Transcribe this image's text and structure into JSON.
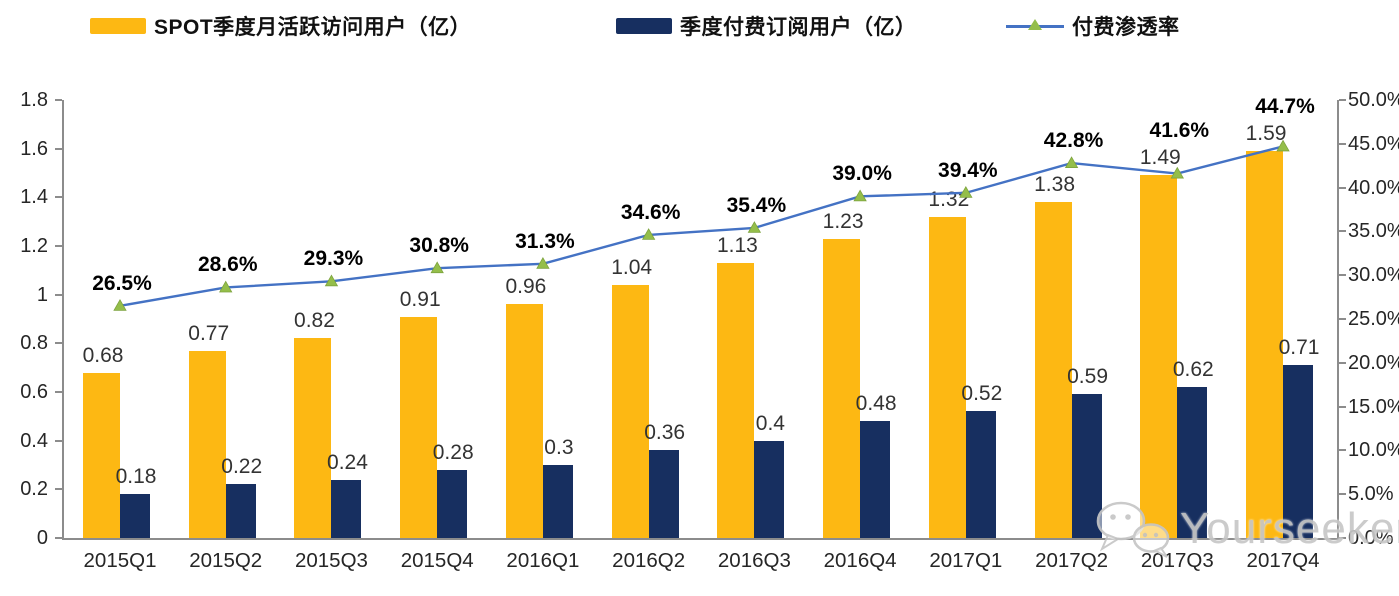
{
  "legend": {
    "items": [
      {
        "label": "SPOT季度月活跃访问用户（亿）",
        "type": "bar",
        "color": "#FDB813"
      },
      {
        "label": "季度付费订阅用户（亿）",
        "type": "bar",
        "color": "#172F60"
      },
      {
        "label": "付费渗透率",
        "type": "line",
        "color": "#4472C4",
        "marker_color": "#94BE4A"
      }
    ]
  },
  "chart_data": {
    "type": "combo-bar-line",
    "categories": [
      "2015Q1",
      "2015Q2",
      "2015Q3",
      "2015Q4",
      "2016Q1",
      "2016Q2",
      "2016Q3",
      "2016Q4",
      "2017Q1",
      "2017Q2",
      "2017Q3",
      "2017Q4"
    ],
    "series": [
      {
        "name": "SPOT季度月活跃访问用户（亿）",
        "type": "bar",
        "axis": "left",
        "color": "#FDB813",
        "values": [
          0.68,
          0.77,
          0.82,
          0.91,
          0.96,
          1.04,
          1.13,
          1.23,
          1.32,
          1.38,
          1.49,
          1.59
        ],
        "labels": [
          "0.68",
          "0.77",
          "0.82",
          "0.91",
          "0.96",
          "1.04",
          "1.13",
          "1.23",
          "1.32",
          "1.38",
          "1.49",
          "1.59"
        ]
      },
      {
        "name": "季度付费订阅用户（亿）",
        "type": "bar",
        "axis": "left",
        "color": "#172F60",
        "values": [
          0.18,
          0.22,
          0.24,
          0.28,
          0.3,
          0.36,
          0.4,
          0.48,
          0.52,
          0.59,
          0.62,
          0.71
        ],
        "labels": [
          "0.18",
          "0.22",
          "0.24",
          "0.28",
          "0.3",
          "0.36",
          "0.4",
          "0.48",
          "0.52",
          "0.59",
          "0.62",
          "0.71"
        ]
      },
      {
        "name": "付费渗透率",
        "type": "line",
        "axis": "right",
        "color": "#4472C4",
        "marker": "triangle",
        "marker_color": "#94BE4A",
        "values": [
          26.5,
          28.6,
          29.3,
          30.8,
          31.3,
          34.6,
          35.4,
          39.0,
          39.4,
          42.8,
          41.6,
          44.7
        ],
        "labels": [
          "26.5%",
          "28.6%",
          "29.3%",
          "30.8%",
          "31.3%",
          "34.6%",
          "35.4%",
          "39.0%",
          "39.4%",
          "42.8%",
          "41.6%",
          "44.7%"
        ]
      }
    ],
    "left_axis": {
      "min": 0,
      "max": 1.8,
      "step": 0.2,
      "tick_labels": [
        "1.8",
        "1.6",
        "1.4",
        "1.2",
        "1",
        "0.8",
        "0.6",
        "0.4",
        "0.2",
        "0"
      ]
    },
    "right_axis": {
      "min": 0,
      "max": 50,
      "step": 5,
      "tick_labels": [
        "50.0%",
        "45.0%",
        "40.0%",
        "35.0%",
        "30.0%",
        "25.0%",
        "20.0%",
        "15.0%",
        "10.0%",
        "5.0%",
        "0.0%"
      ]
    },
    "grid": false,
    "legend_position": "top"
  },
  "watermark": {
    "text": "Yourseeker",
    "icon": "wechat-icon"
  }
}
